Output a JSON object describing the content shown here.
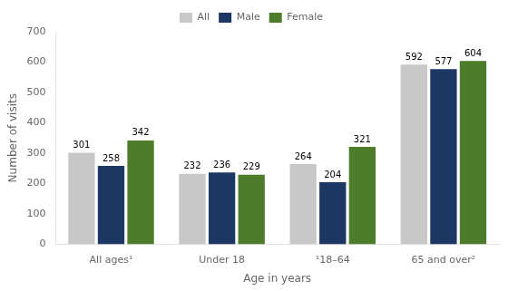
{
  "chart_data": {
    "type": "bar",
    "categories": [
      "All ages¹",
      "Under 18",
      "¹18–64",
      "65 and over²"
    ],
    "series": [
      {
        "name": "All",
        "color": "#c8c8c8",
        "values": [
          301,
          232,
          264,
          592
        ]
      },
      {
        "name": "Male",
        "color": "#1c3764",
        "values": [
          258,
          236,
          204,
          577
        ]
      },
      {
        "name": "Female",
        "color": "#4d7c2a",
        "values": [
          342,
          229,
          321,
          604
        ]
      }
    ],
    "xlabel": "Age in years",
    "ylabel": "Number of visits",
    "ylim": [
      0,
      700
    ],
    "yticks": [
      0,
      100,
      200,
      300,
      400,
      500,
      600,
      700
    ],
    "grid": false,
    "legend": "top",
    "data_labels": true
  }
}
